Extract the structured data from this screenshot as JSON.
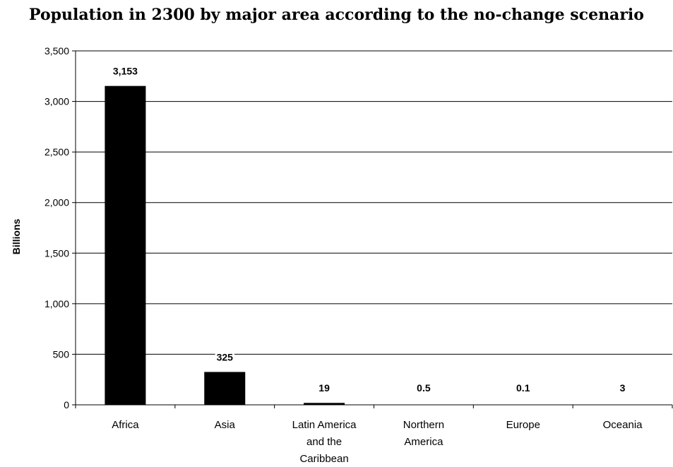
{
  "chart_data": {
    "type": "bar",
    "title": "Population in 2300 by major area according to the no-change scenario",
    "ylabel": "Billions",
    "xlabel": "",
    "ylim": [
      0,
      3500
    ],
    "yticks": [
      0,
      500,
      1000,
      1500,
      2000,
      2500,
      3000,
      3500
    ],
    "ytick_labels": [
      "0",
      "500",
      "1,000",
      "1,500",
      "2,000",
      "2,500",
      "3,000",
      "3,500"
    ],
    "categories": [
      [
        "Africa"
      ],
      [
        "Asia"
      ],
      [
        "Latin America",
        "and the",
        "Caribbean"
      ],
      [
        "Northern",
        "America"
      ],
      [
        "Europe"
      ],
      [
        "Oceania"
      ]
    ],
    "values": [
      3153,
      325,
      19,
      0.5,
      0.1,
      3
    ],
    "data_labels": [
      "3,153",
      "325",
      "19",
      "0.5",
      "0.1",
      "3"
    ],
    "grid": true,
    "legend": "none",
    "bar_color": "#000000"
  }
}
